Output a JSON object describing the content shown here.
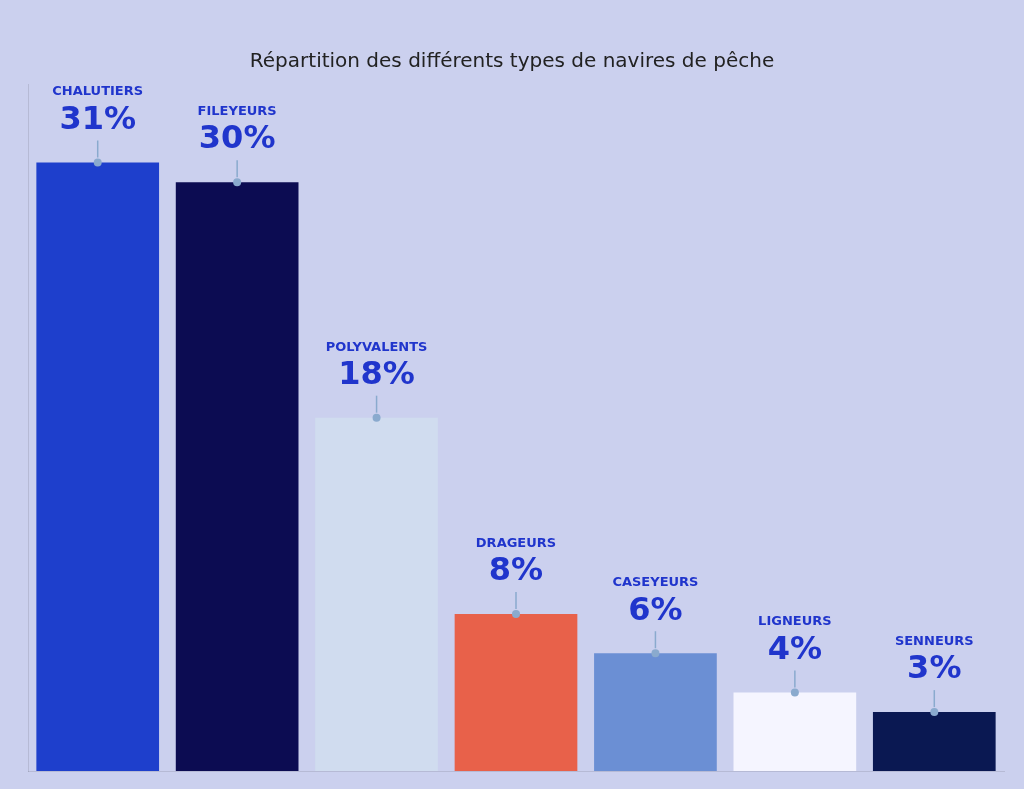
{
  "chart_data": {
    "type": "bar",
    "title": "Répartition des différents types de navires de pêche",
    "categories": [
      "CHALUTIERS",
      "FILEYEURS",
      "POLYVALENTS",
      "DRAGEURS",
      "CASEYEURS",
      "LIGNEURS",
      "SENNEURS"
    ],
    "values": [
      31,
      30,
      18,
      8,
      6,
      4,
      3
    ],
    "value_labels": [
      "31%",
      "30%",
      "18%",
      "8%",
      "6%",
      "4%",
      "3%"
    ],
    "colors": [
      "#1E3FCC",
      "#0C0C52",
      "#D0DCEF",
      "#E8614A",
      "#6B8FD4",
      "#F5F5FF",
      "#0A1852"
    ],
    "ylim": [
      0,
      35
    ],
    "grid": false,
    "tick_labels": false,
    "data_labels": true
  }
}
